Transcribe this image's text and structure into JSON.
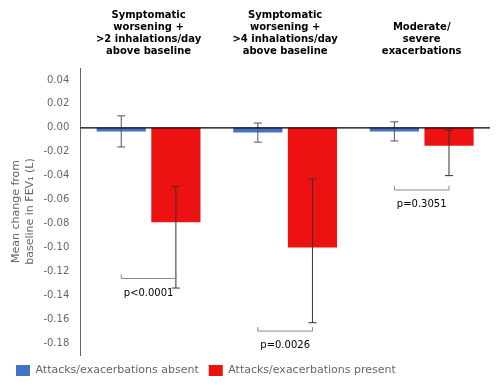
{
  "chart_data": {
    "type": "bar",
    "categories": [
      "Symptomatic\nworsening +\n>2 inhalations/day\nabove baseline",
      "Symptomatic\nworsening +\n>4 inhalations/day\nabove baseline",
      "Moderate/\nsevere\nexacerbations"
    ],
    "series": [
      {
        "name": "Attacks/exacerbations absent",
        "color": "#4472C4",
        "values": [
          -0.003,
          -0.004,
          -0.003
        ],
        "error_upper": [
          0.013,
          0.008,
          0.008
        ],
        "error_lower": [
          0.013,
          0.008,
          0.008
        ]
      },
      {
        "name": "Attacks/exacerbations present",
        "color": "#EE1111",
        "values": [
          -0.079,
          -0.1,
          -0.015
        ],
        "error_upper": [
          0.03,
          0.057,
          0.013
        ],
        "error_lower": [
          0.055,
          0.063,
          0.025
        ]
      }
    ],
    "ylabel": "Mean change from\nbaseline in FEV₁ (L)",
    "ylim": [
      -0.19,
      0.05
    ],
    "yticks": [
      0.04,
      0.02,
      {
        "value": 0,
        "label": "0.00"
      },
      -0.02,
      -0.04,
      -0.06,
      -0.08,
      {
        "value": -0.1,
        "label": "-0.10"
      },
      -0.12,
      -0.14,
      -0.16,
      -0.18
    ],
    "annotations": [
      {
        "text": "p<0.0001",
        "category": "Symptomatic\nworsening +\n>2 inhalations/day\nabove baseline",
        "y_bracket": -0.126,
        "y_text": -0.134
      },
      {
        "text": "p=0.0026",
        "category": "Symptomatic\nworsening +\n>4 inhalations/day\nabove baseline",
        "y_bracket": -0.17,
        "y_text": -0.178
      },
      {
        "text": "p=0.3051",
        "category": "Moderate/\nsevere\nexacerbations",
        "y_bracket": -0.052,
        "y_text": -0.06
      }
    ],
    "legend": "bottom",
    "grid": false
  }
}
